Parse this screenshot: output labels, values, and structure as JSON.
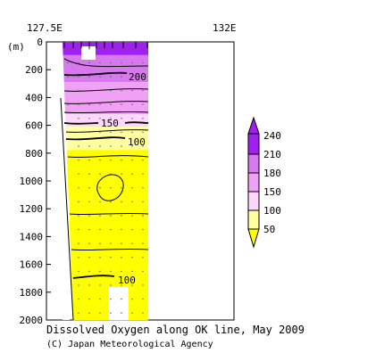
{
  "chart_data": {
    "type": "heatmap",
    "title": "Dissolved Oxygen along OK line, May 2009",
    "copyright": "(C) Japan Meteorological Agency",
    "x_ticks": [
      "127.5E",
      "132E"
    ],
    "y_unit_label": "(m)",
    "y_ticks": [
      0,
      200,
      400,
      600,
      800,
      1000,
      1200,
      1400,
      1600,
      1800,
      2000
    ],
    "ylim": [
      0,
      2000
    ],
    "y_reversed": true,
    "contour_labels": [
      {
        "text": "200",
        "depth": 30,
        "lon": 128.9
      },
      {
        "text": "150",
        "depth": 585,
        "lon": 128.4
      },
      {
        "text": "100",
        "depth": 765,
        "lon": 128.9
      },
      {
        "text": "100",
        "depth": 1880,
        "lon": 128.6
      }
    ],
    "colorbar": {
      "levels": [
        50,
        100,
        150,
        180,
        210,
        240
      ],
      "colors": [
        "#ffff00",
        "#ffffa0",
        "#ffd6ff",
        "#f0a0f5",
        "#d878ee",
        "#a020f0"
      ]
    }
  }
}
